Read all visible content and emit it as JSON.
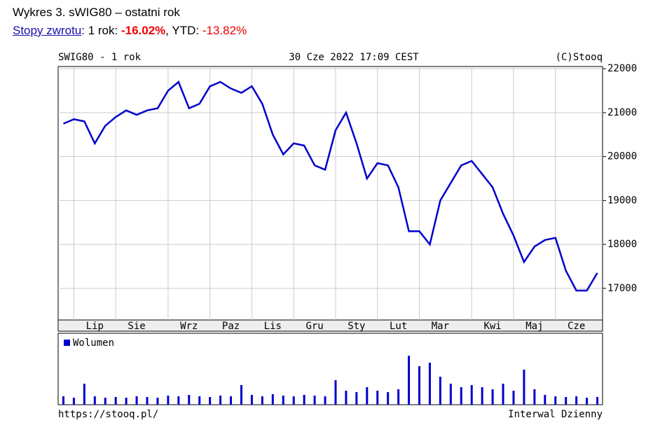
{
  "header": {
    "title": "Wykres 3. sWIG80 – ostatni rok",
    "link": "Stopy zwrotu",
    "period_label": ": 1 rok: ",
    "period_return": "-16.02%",
    "ytd_label": ", YTD: ",
    "ytd_return": "-13.82%"
  },
  "chart_data": {
    "type": "line",
    "title": "SWIG80 - 1 rok",
    "date": "30 Cze 2022 17:09 CEST",
    "source": "(C)Stooq",
    "footer_left": "https://stooq.pl/",
    "footer_right": "Interwal Dzienny",
    "categories": [
      null,
      null,
      null,
      "Lip",
      null,
      null,
      null,
      "Sie",
      null,
      null,
      null,
      null,
      "Wrz",
      null,
      null,
      null,
      "Paz",
      null,
      null,
      null,
      "Lis",
      null,
      null,
      null,
      "Gru",
      null,
      null,
      null,
      "Sty",
      null,
      null,
      null,
      "Lut",
      null,
      null,
      null,
      "Mar",
      null,
      null,
      null,
      null,
      "Kwi",
      null,
      null,
      null,
      "Maj",
      null,
      null,
      null,
      "Cze",
      null,
      null
    ],
    "series": [
      {
        "name": "sWIG80",
        "color": "#0000cc",
        "values": [
          20750,
          20850,
          20800,
          20300,
          20700,
          20900,
          21050,
          20950,
          21050,
          21100,
          21500,
          21700,
          21100,
          21200,
          21600,
          21700,
          21550,
          21450,
          21600,
          21200,
          20500,
          20050,
          20300,
          20250,
          19800,
          19700,
          20600,
          21000,
          20300,
          19500,
          19850,
          19800,
          19300,
          18300,
          18300,
          18000,
          19000,
          19400,
          19800,
          19900,
          19600,
          19300,
          18700,
          18200,
          17600,
          17950,
          18100,
          18150,
          17400,
          16950,
          16950,
          17350
        ]
      },
      {
        "name": "Wolumen",
        "color": "#0000cc",
        "axis": "y2",
        "values": [
          12,
          10,
          30,
          12,
          10,
          11,
          10,
          12,
          11,
          10,
          13,
          12,
          14,
          12,
          11,
          13,
          12,
          28,
          14,
          12,
          15,
          13,
          12,
          14,
          13,
          12,
          35,
          20,
          18,
          25,
          20,
          18,
          22,
          70,
          55,
          60,
          40,
          30,
          25,
          28,
          25,
          22,
          30,
          20,
          50,
          22,
          14,
          12,
          11,
          12,
          10,
          11
        ]
      }
    ],
    "ylim": [
      16280,
      22050
    ],
    "yticks": [
      17000,
      18000,
      19000,
      20000,
      21000,
      22000
    ],
    "y2lim": [
      0,
      100
    ],
    "grid": true
  }
}
